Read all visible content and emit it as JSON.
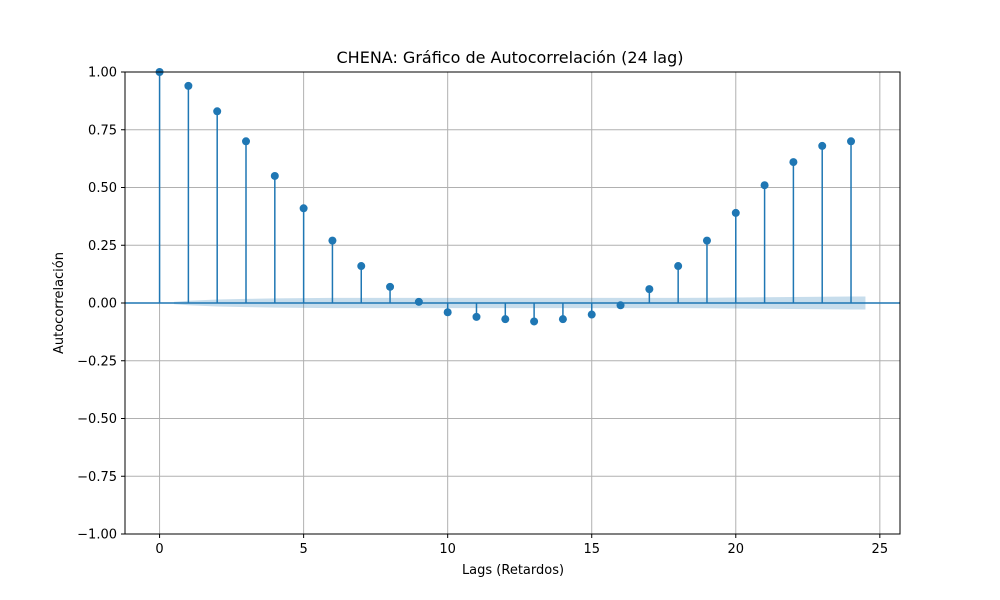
{
  "chart_data": {
    "type": "scatter",
    "subtype": "acf-stem",
    "title": "CHENA: Gráfico de Autocorrelación (24 lag)",
    "xlabel": "Lags (Retardos)",
    "ylabel": "Autocorrelación",
    "xlim": [
      -1.2,
      25.7
    ],
    "ylim": [
      -1.0,
      1.0
    ],
    "xticks": [
      0,
      5,
      10,
      15,
      20,
      25
    ],
    "yticks": [
      -1.0,
      -0.75,
      -0.5,
      -0.25,
      0.0,
      0.25,
      0.5,
      0.75,
      1.0
    ],
    "xtick_labels": [
      "0",
      "5",
      "10",
      "15",
      "20",
      "25"
    ],
    "ytick_labels": [
      "−1.00",
      "−0.75",
      "−0.50",
      "−0.25",
      "0.00",
      "0.25",
      "0.50",
      "0.75",
      "1.00"
    ],
    "grid": true,
    "lags": [
      0,
      1,
      2,
      3,
      4,
      5,
      6,
      7,
      8,
      9,
      10,
      11,
      12,
      13,
      14,
      15,
      16,
      17,
      18,
      19,
      20,
      21,
      22,
      23,
      24
    ],
    "values": [
      1.0,
      0.94,
      0.83,
      0.7,
      0.55,
      0.41,
      0.27,
      0.16,
      0.07,
      0.005,
      -0.04,
      -0.06,
      -0.07,
      -0.08,
      -0.07,
      -0.05,
      -0.01,
      0.06,
      0.16,
      0.27,
      0.39,
      0.51,
      0.61,
      0.68,
      0.7
    ],
    "confidence_band": {
      "x": [
        0.5,
        1,
        2,
        3,
        4,
        5,
        6,
        7,
        8,
        9,
        10,
        11,
        12,
        13,
        14,
        15,
        16,
        17,
        18,
        19,
        20,
        21,
        22,
        23,
        24,
        24.5
      ],
      "upper": [
        0.005,
        0.01,
        0.015,
        0.018,
        0.02,
        0.021,
        0.022,
        0.022,
        0.022,
        0.022,
        0.022,
        0.022,
        0.022,
        0.022,
        0.022,
        0.022,
        0.022,
        0.022,
        0.022,
        0.023,
        0.024,
        0.025,
        0.026,
        0.027,
        0.028,
        0.028
      ]
    },
    "colors": {
      "series": "#1f77b4",
      "band": "#1f77b4",
      "grid": "#b0b0b0"
    }
  }
}
